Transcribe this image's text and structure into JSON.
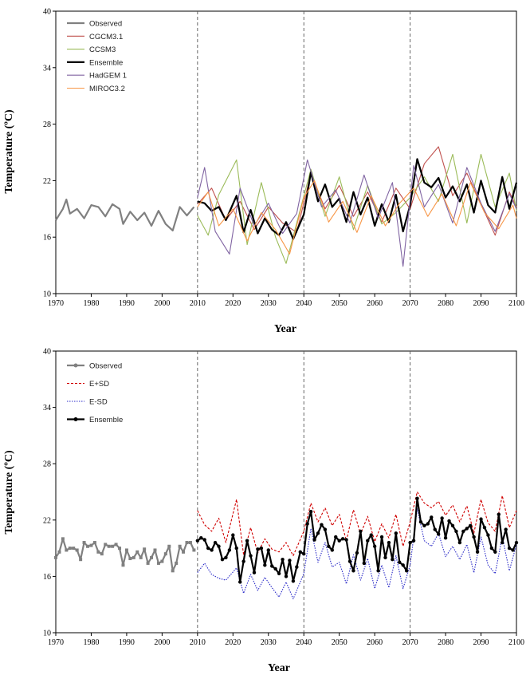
{
  "chart_data": [
    {
      "type": "line",
      "xlabel": "Year",
      "ylabel": "Temperature (ºC)",
      "xlim": [
        1970,
        2100
      ],
      "ylim": [
        10,
        40
      ],
      "xticks": [
        "1970",
        "1980",
        "1990",
        "2000",
        "2010",
        "2020",
        "2030",
        "2040",
        "2050",
        "2060",
        "2070",
        "2080",
        "2090",
        "2100"
      ],
      "yticks": [
        "10",
        "16",
        "22",
        "28",
        "34",
        "40"
      ],
      "vertical_dashed_lines": [
        2010,
        2040,
        2070
      ],
      "legend": [
        "Observed",
        "CGCM3.1",
        "CCSM3",
        "Ensemble",
        "HadGEM 1",
        "MIROC3.2"
      ],
      "legend_position": "top-left",
      "series": [
        {
          "name": "Observed",
          "color": "#808080",
          "x": [
            1970,
            1972,
            1973,
            1974,
            1976,
            1978,
            1980,
            1982,
            1984,
            1986,
            1988,
            1989,
            1991,
            1993,
            1995,
            1997,
            1999,
            2001,
            2003,
            2005,
            2007,
            2009
          ],
          "y": [
            17.8,
            19.0,
            20.0,
            18.5,
            19.0,
            18.0,
            19.4,
            19.2,
            18.2,
            19.5,
            19.0,
            17.4,
            18.7,
            17.8,
            18.6,
            17.2,
            18.8,
            17.4,
            16.7,
            19.2,
            18.3,
            19.2
          ]
        },
        {
          "name": "CGCM3.1",
          "color": "#c0504d",
          "x": [
            2010,
            2014,
            2018,
            2022,
            2026,
            2030,
            2034,
            2038,
            2042,
            2046,
            2050,
            2054,
            2058,
            2062,
            2066,
            2070,
            2074,
            2078,
            2082,
            2086,
            2090,
            2094,
            2098,
            2100
          ],
          "y": [
            19.5,
            21.2,
            17.8,
            19.8,
            16.8,
            19.2,
            17.5,
            16.5,
            22.8,
            19.0,
            21.5,
            18.2,
            20.8,
            17.6,
            21.2,
            19.0,
            23.8,
            25.6,
            20.4,
            22.8,
            19.5,
            16.2,
            20.8,
            19.2
          ]
        },
        {
          "name": "CCSM3",
          "color": "#9bbb59",
          "x": [
            2010,
            2013,
            2016,
            2021,
            2024,
            2028,
            2032,
            2035,
            2038,
            2042,
            2046,
            2050,
            2054,
            2058,
            2062,
            2066,
            2070,
            2074,
            2078,
            2082,
            2086,
            2090,
            2094,
            2098,
            2100
          ],
          "y": [
            18.3,
            16.2,
            20.5,
            24.2,
            15.2,
            21.8,
            16.0,
            13.2,
            17.5,
            23.2,
            18.2,
            22.4,
            16.8,
            21.5,
            17.4,
            18.6,
            20.2,
            22.4,
            19.8,
            24.8,
            17.5,
            24.8,
            19.2,
            22.8,
            18.8
          ]
        },
        {
          "name": "Ensemble",
          "color": "#000000",
          "x": [
            2010,
            2012,
            2014,
            2016,
            2018,
            2021,
            2023,
            2025,
            2027,
            2029,
            2031,
            2033,
            2035,
            2037,
            2040,
            2042,
            2044,
            2046,
            2048,
            2050,
            2052,
            2054,
            2056,
            2058,
            2060,
            2062,
            2064,
            2066,
            2068,
            2070,
            2072,
            2074,
            2076,
            2078,
            2080,
            2082,
            2084,
            2086,
            2088,
            2090,
            2092,
            2094,
            2096,
            2098,
            2100
          ],
          "y": [
            19.8,
            19.6,
            18.8,
            19.2,
            17.8,
            20.4,
            16.5,
            18.9,
            16.4,
            18.0,
            16.8,
            16.2,
            17.6,
            15.8,
            18.4,
            22.9,
            19.8,
            21.6,
            19.2,
            20.1,
            17.6,
            20.8,
            18.4,
            20.2,
            17.2,
            19.5,
            17.6,
            20.5,
            16.6,
            19.4,
            24.3,
            21.8,
            21.3,
            22.3,
            20.2,
            21.4,
            19.8,
            21.6,
            18.6,
            22.0,
            19.4,
            18.6,
            22.4,
            19.0,
            21.8
          ]
        },
        {
          "name": "HadGEM 1",
          "color": "#8064a2",
          "x": [
            2010,
            2012,
            2015,
            2019,
            2022,
            2026,
            2030,
            2034,
            2038,
            2041,
            2045,
            2049,
            2053,
            2057,
            2061,
            2065,
            2068,
            2071,
            2074,
            2078,
            2082,
            2086,
            2090,
            2094,
            2098,
            2100
          ],
          "y": [
            20.2,
            23.4,
            16.6,
            14.2,
            21.2,
            17.2,
            19.6,
            16.4,
            18.5,
            24.2,
            19.2,
            21.0,
            17.5,
            22.6,
            18.0,
            21.8,
            12.9,
            23.6,
            19.2,
            21.6,
            17.5,
            23.4,
            19.6,
            16.6,
            20.6,
            19.0
          ]
        },
        {
          "name": "MIROC3.2",
          "color": "#f79646",
          "x": [
            2010,
            2013,
            2016,
            2020,
            2024,
            2028,
            2032,
            2036,
            2040,
            2043,
            2047,
            2051,
            2055,
            2059,
            2063,
            2067,
            2071,
            2075,
            2079,
            2083,
            2087,
            2091,
            2095,
            2099,
            2100
          ],
          "y": [
            19.2,
            20.8,
            17.2,
            19.0,
            15.6,
            18.6,
            16.8,
            14.2,
            20.2,
            22.0,
            17.6,
            19.8,
            16.5,
            20.4,
            17.2,
            19.6,
            21.2,
            18.2,
            20.6,
            17.2,
            21.8,
            18.6,
            16.9,
            19.4,
            18.0
          ]
        }
      ]
    },
    {
      "type": "line",
      "xlabel": "Year",
      "ylabel": "Temperature (ºC)",
      "xlim": [
        1970,
        2100
      ],
      "ylim": [
        10,
        40
      ],
      "xticks": [
        "1970",
        "1980",
        "1990",
        "2000",
        "2010",
        "2020",
        "2030",
        "2040",
        "2050",
        "2060",
        "2070",
        "2080",
        "2090",
        "2100"
      ],
      "yticks": [
        "10",
        "16",
        "22",
        "28",
        "34",
        "40"
      ],
      "vertical_dashed_lines": [
        2010,
        2040,
        2070
      ],
      "legend": [
        "Observed",
        "E+SD",
        "E-SD",
        "Ensemble"
      ],
      "legend_position": "top-left",
      "series": [
        {
          "name": "Observed",
          "color": "#808080",
          "markers": true,
          "x": [
            1970,
            1971,
            1972,
            1973,
            1974,
            1975,
            1976,
            1977,
            1978,
            1979,
            1980,
            1981,
            1982,
            1983,
            1984,
            1985,
            1986,
            1987,
            1988,
            1989,
            1990,
            1991,
            1992,
            1993,
            1994,
            1995,
            1996,
            1997,
            1998,
            1999,
            2000,
            2001,
            2002,
            2003,
            2004,
            2005,
            2006,
            2007,
            2008,
            2009
          ],
          "y": [
            18.0,
            18.6,
            20.0,
            18.8,
            19.0,
            19.0,
            18.8,
            17.8,
            19.6,
            19.2,
            19.3,
            19.6,
            18.6,
            18.4,
            19.4,
            19.2,
            19.2,
            19.4,
            19.0,
            17.2,
            18.8,
            17.9,
            18.0,
            18.6,
            18.0,
            18.9,
            17.4,
            18.0,
            18.8,
            17.4,
            17.6,
            18.4,
            19.2,
            16.6,
            17.4,
            19.2,
            18.6,
            19.6,
            19.6,
            18.8
          ]
        },
        {
          "name": "E+SD",
          "color": "#d00000",
          "x": [
            2010,
            2012,
            2014,
            2016,
            2018,
            2021,
            2023,
            2025,
            2027,
            2029,
            2031,
            2033,
            2035,
            2037,
            2040,
            2042,
            2044,
            2046,
            2048,
            2050,
            2052,
            2054,
            2056,
            2058,
            2060,
            2062,
            2064,
            2066,
            2068,
            2070,
            2072,
            2074,
            2076,
            2078,
            2080,
            2082,
            2084,
            2086,
            2088,
            2090,
            2092,
            2094,
            2096,
            2098,
            2100
          ],
          "y": [
            23.0,
            21.5,
            20.8,
            22.2,
            19.6,
            24.2,
            18.3,
            21.2,
            18.5,
            20.0,
            18.9,
            18.6,
            19.6,
            18.2,
            20.8,
            23.8,
            21.8,
            23.3,
            21.4,
            22.6,
            19.8,
            23.1,
            20.5,
            22.4,
            19.7,
            21.6,
            20.1,
            22.6,
            19.2,
            21.8,
            25.0,
            23.8,
            23.3,
            24.0,
            22.5,
            23.6,
            21.8,
            23.5,
            20.6,
            24.2,
            21.7,
            20.8,
            24.6,
            21.2,
            23.0
          ]
        },
        {
          "name": "E-SD",
          "color": "#2a2ac8",
          "x": [
            2010,
            2012,
            2014,
            2016,
            2018,
            2021,
            2023,
            2025,
            2027,
            2029,
            2031,
            2033,
            2035,
            2037,
            2040,
            2042,
            2044,
            2046,
            2048,
            2050,
            2052,
            2054,
            2056,
            2058,
            2060,
            2062,
            2064,
            2066,
            2068,
            2070,
            2072,
            2074,
            2076,
            2078,
            2080,
            2082,
            2084,
            2086,
            2088,
            2090,
            2092,
            2094,
            2096,
            2098,
            2100
          ],
          "y": [
            16.4,
            17.4,
            16.2,
            15.8,
            15.6,
            16.9,
            14.2,
            16.2,
            14.5,
            15.9,
            14.8,
            13.8,
            15.4,
            13.6,
            16.3,
            21.1,
            17.5,
            19.6,
            17.0,
            17.5,
            15.2,
            18.3,
            15.6,
            17.9,
            14.7,
            17.2,
            14.8,
            18.2,
            14.7,
            17.2,
            23.2,
            19.8,
            19.2,
            20.6,
            18.1,
            19.2,
            17.8,
            19.4,
            16.4,
            20.2,
            17.2,
            16.3,
            20.2,
            16.6,
            19.4
          ]
        },
        {
          "name": "Ensemble",
          "color": "#000000",
          "markers": true,
          "x": [
            2010,
            2011,
            2012,
            2013,
            2014,
            2015,
            2016,
            2017,
            2018,
            2019,
            2020,
            2021,
            2022,
            2023,
            2024,
            2025,
            2026,
            2027,
            2028,
            2029,
            2030,
            2031,
            2032,
            2033,
            2034,
            2035,
            2036,
            2037,
            2038,
            2039,
            2040,
            2041,
            2042,
            2043,
            2044,
            2045,
            2046,
            2047,
            2048,
            2049,
            2050,
            2051,
            2052,
            2053,
            2054,
            2055,
            2056,
            2057,
            2058,
            2059,
            2060,
            2061,
            2062,
            2063,
            2064,
            2065,
            2066,
            2067,
            2068,
            2069,
            2070,
            2071,
            2072,
            2073,
            2074,
            2075,
            2076,
            2077,
            2078,
            2079,
            2080,
            2081,
            2082,
            2083,
            2084,
            2085,
            2086,
            2087,
            2088,
            2089,
            2090,
            2091,
            2092,
            2093,
            2094,
            2095,
            2096,
            2097,
            2098,
            2099,
            2100
          ],
          "y": [
            19.8,
            20.1,
            19.9,
            19.0,
            18.8,
            19.6,
            19.2,
            17.8,
            18.0,
            18.8,
            20.4,
            19.0,
            15.4,
            17.6,
            19.8,
            18.2,
            16.4,
            18.9,
            19.0,
            17.2,
            18.8,
            17.1,
            16.8,
            16.3,
            17.8,
            16.0,
            17.7,
            15.5,
            17.0,
            18.6,
            18.4,
            21.6,
            22.9,
            19.9,
            20.6,
            21.5,
            21.0,
            19.2,
            18.8,
            20.2,
            19.8,
            20.0,
            19.9,
            17.6,
            16.6,
            18.5,
            20.8,
            17.4,
            19.8,
            20.4,
            19.2,
            16.6,
            20.2,
            18.0,
            19.6,
            17.8,
            20.6,
            17.5,
            17.2,
            16.6,
            19.6,
            19.8,
            24.3,
            21.8,
            21.4,
            21.6,
            22.3,
            21.0,
            20.5,
            22.2,
            20.1,
            21.9,
            21.4,
            20.8,
            19.6,
            20.8,
            21.1,
            21.4,
            20.2,
            18.6,
            22.1,
            21.2,
            20.4,
            19.0,
            18.6,
            22.6,
            19.6,
            21.0,
            19.0,
            18.8,
            19.6
          ]
        }
      ]
    }
  ]
}
